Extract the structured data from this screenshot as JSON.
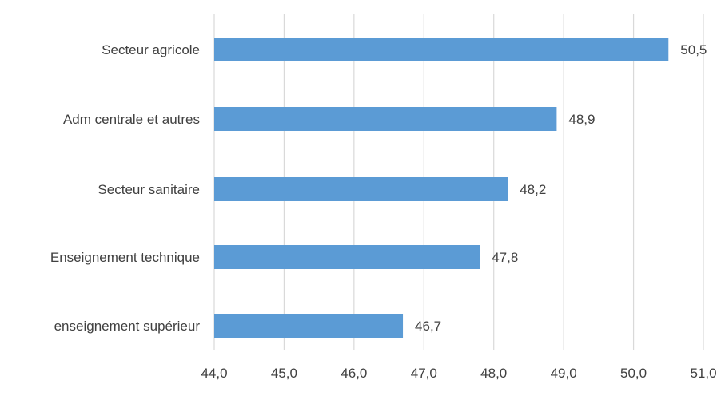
{
  "chart_data": {
    "type": "bar",
    "orientation": "horizontal",
    "title": "",
    "xlabel": "",
    "ylabel": "",
    "categories": [
      "Secteur agricole",
      "Adm centrale et autres",
      "Secteur sanitaire",
      "Enseignement technique",
      "enseignement supérieur"
    ],
    "values": [
      50.5,
      48.9,
      48.2,
      47.8,
      46.7
    ],
    "value_labels": [
      "50,5",
      "48,9",
      "48,2",
      "47,8",
      "46,7"
    ],
    "xlim": [
      44,
      51
    ],
    "x_ticks": [
      44,
      45,
      46,
      47,
      48,
      49,
      50,
      51
    ],
    "x_tick_labels": [
      "44,0",
      "45,0",
      "46,0",
      "47,0",
      "48,0",
      "49,0",
      "50,0",
      "51,0"
    ],
    "grid": "vertical",
    "legend": "none",
    "colors": {
      "bar": "#5B9BD5",
      "grid": "#d9d9d9",
      "text": "#404040"
    }
  }
}
